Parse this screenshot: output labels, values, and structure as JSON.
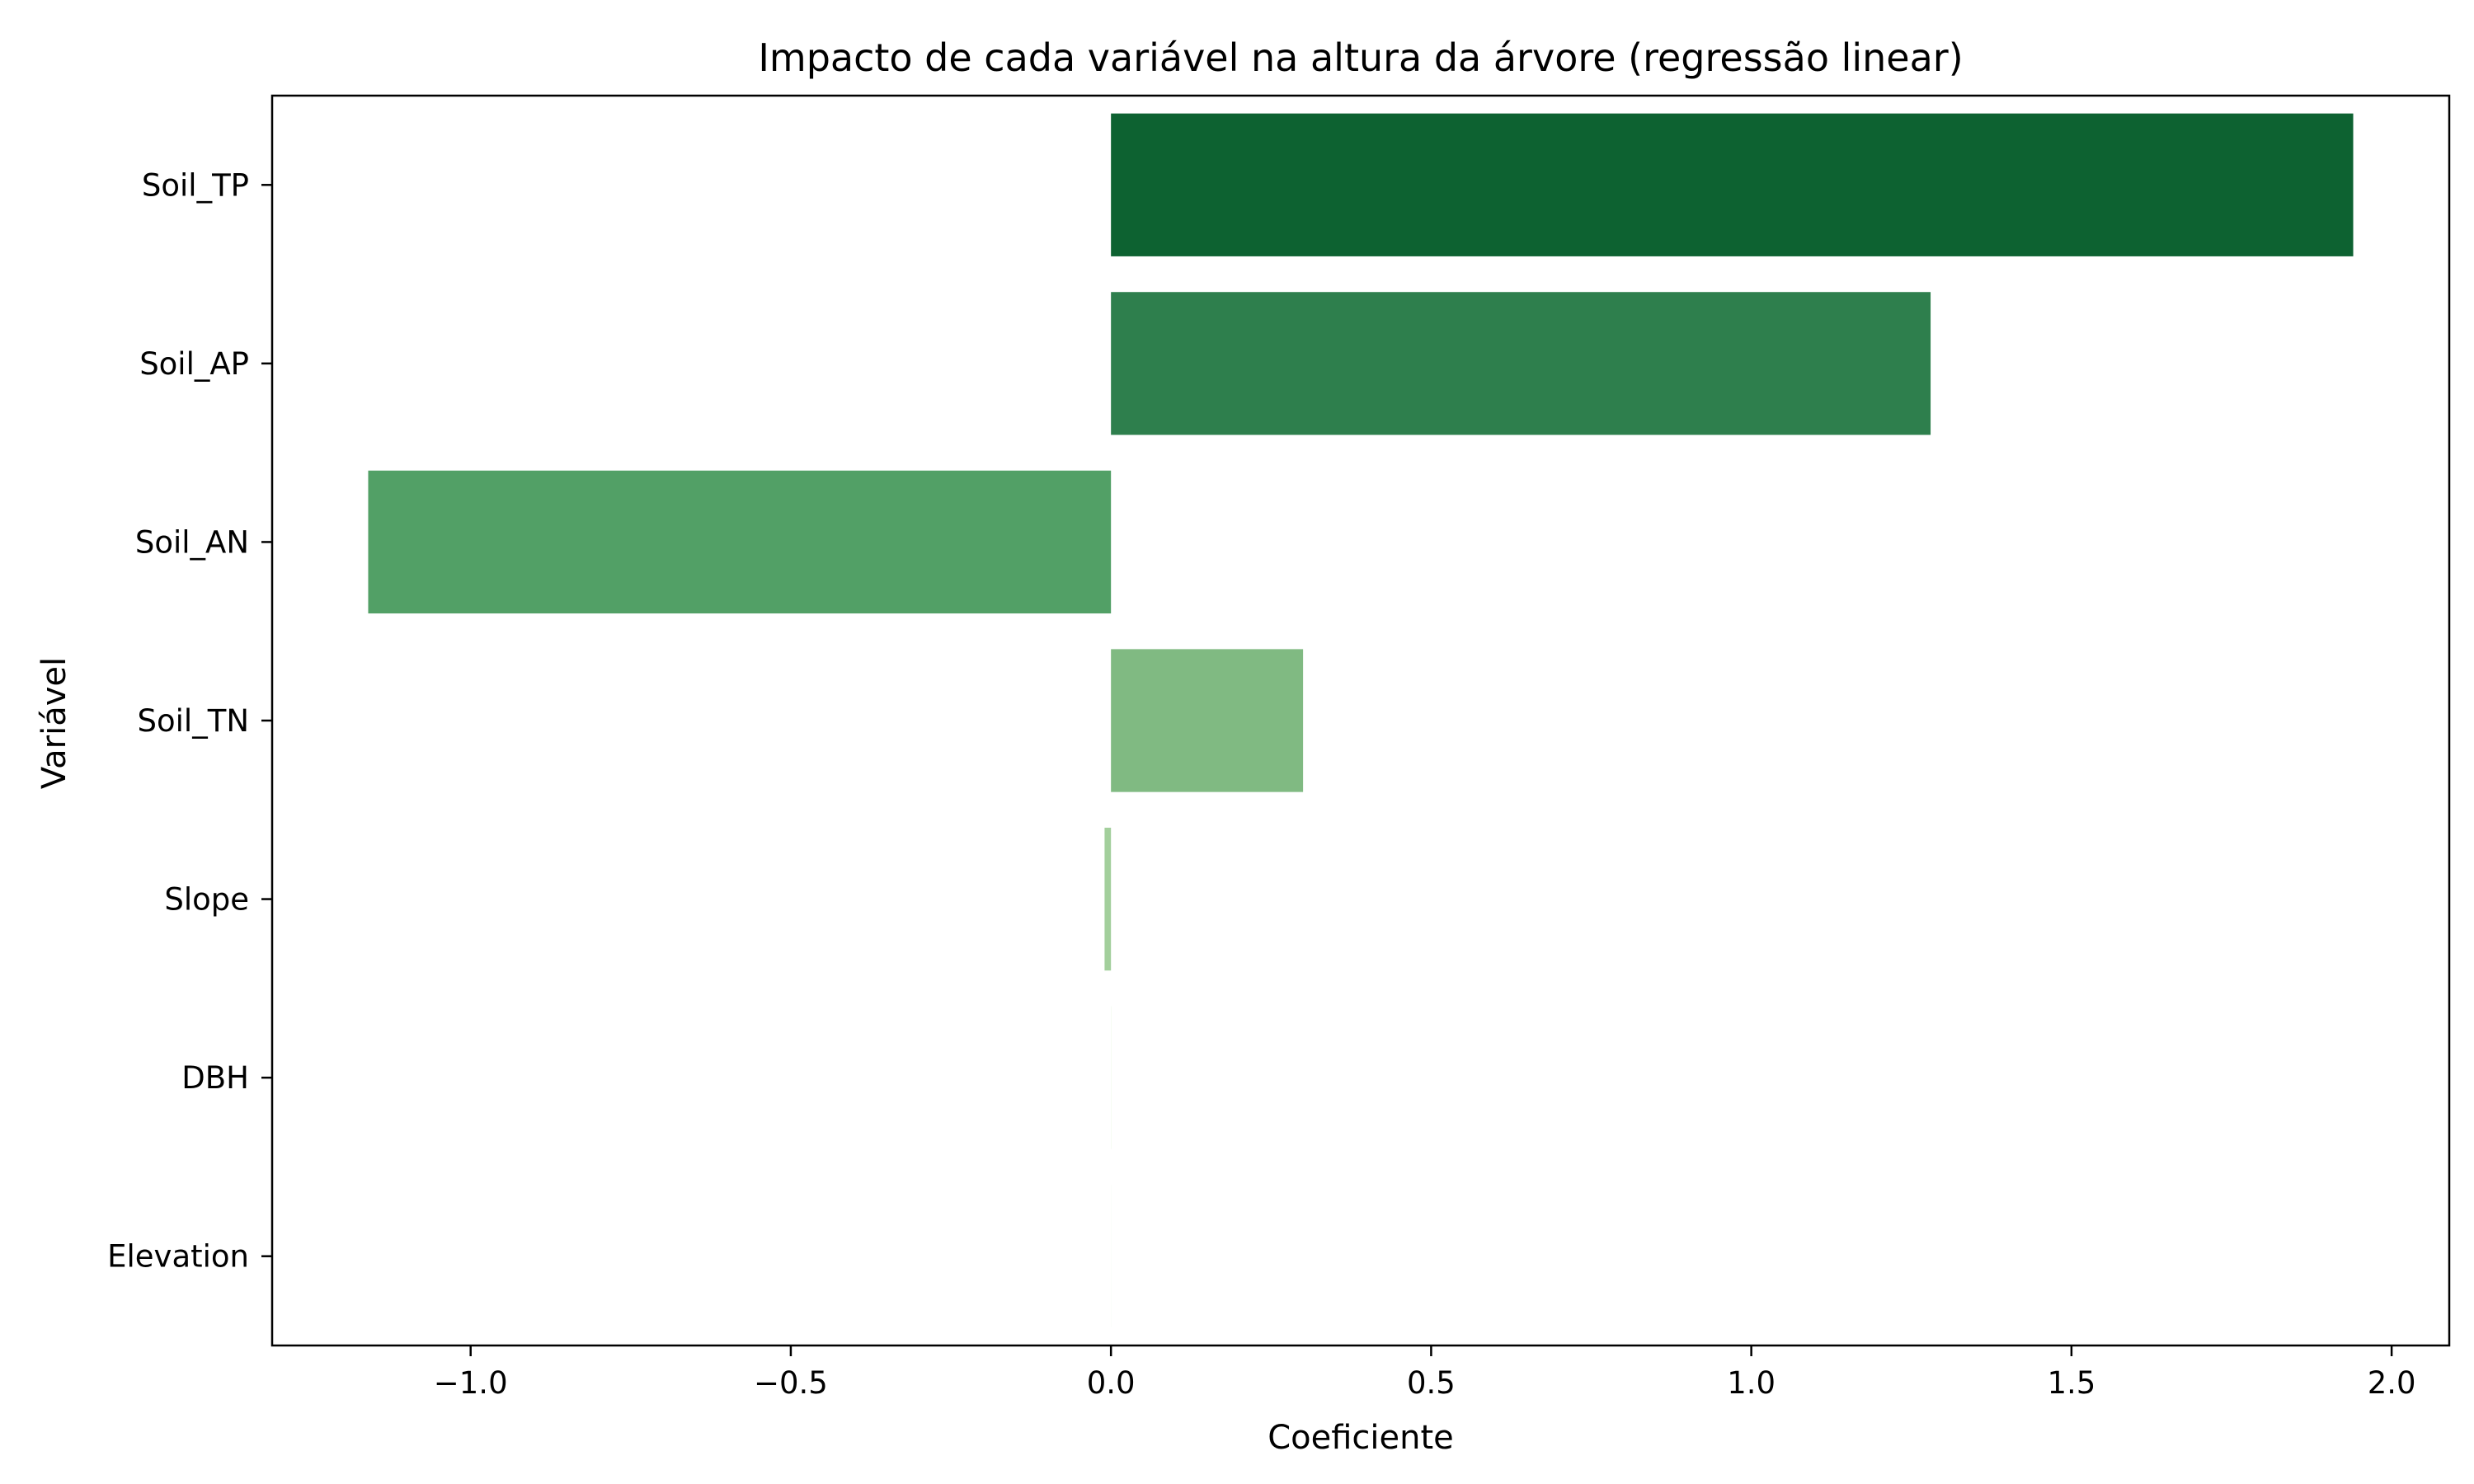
{
  "chart_data": {
    "type": "bar",
    "orientation": "horizontal",
    "title": "Impacto de cada variável na altura da árvore (regressão linear)",
    "xlabel": "Coeficiente",
    "ylabel": "Variável",
    "xlim": [
      -1.31,
      2.09
    ],
    "grid": false,
    "categories": [
      "Soil_TP",
      "Soil_AP",
      "Soil_AN",
      "Soil_TN",
      "Slope",
      "DBH",
      "Elevation"
    ],
    "values": [
      1.94,
      1.28,
      -1.16,
      0.3,
      -0.01,
      0.001,
      0.0
    ],
    "colors": [
      "#0d6231",
      "#2e7f4d",
      "#52a066",
      "#80ba82",
      "#a3cf9c",
      "#f4fbf2",
      "#f7fcf5"
    ],
    "xticks": [
      -1.0,
      -0.5,
      0.0,
      0.5,
      1.0,
      1.5,
      2.0
    ],
    "xtick_labels": [
      "−1.0",
      "−0.5",
      "0.0",
      "0.5",
      "1.0",
      "1.5",
      "2.0"
    ]
  }
}
